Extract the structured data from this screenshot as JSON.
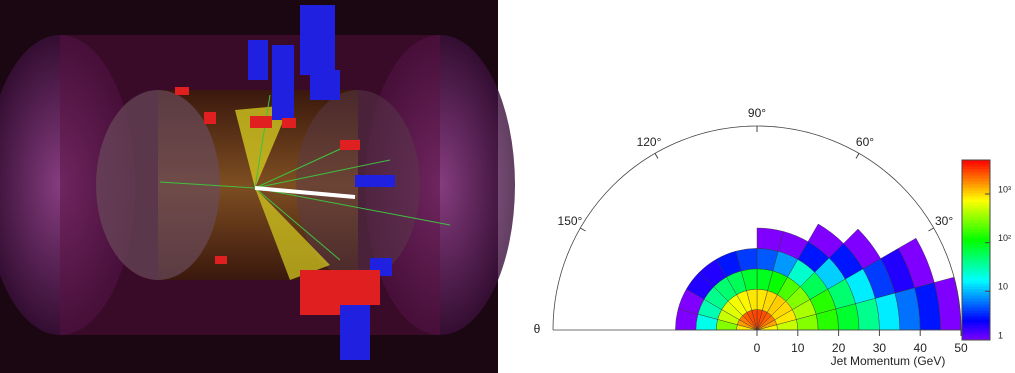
{
  "chart_data": {
    "type": "polar-heatmap",
    "x_label": "Jet Momentum (GeV)",
    "theta_axis_label": "θ",
    "rlim": [
      0,
      50
    ],
    "rticks": [
      0,
      10,
      20,
      30,
      40,
      50
    ],
    "theta_ticks": [
      {
        "value": 30,
        "label": "30°"
      },
      {
        "value": 60,
        "label": "60°"
      },
      {
        "value": 90,
        "label": "90°"
      },
      {
        "value": 120,
        "label": "120°"
      },
      {
        "value": 150,
        "label": "150°"
      }
    ],
    "theta_bins": [
      0,
      15,
      30,
      45,
      60,
      75,
      90,
      105,
      120,
      135,
      150,
      165,
      180
    ],
    "r_bins": [
      0,
      5,
      10,
      15,
      20,
      25,
      30,
      35,
      40,
      45,
      50
    ],
    "counts": [
      [
        800,
        500,
        300,
        150,
        80,
        40,
        15,
        6,
        3,
        1
      ],
      [
        1500,
        900,
        400,
        150,
        50,
        15,
        4,
        2,
        1,
        null
      ],
      [
        2000,
        1000,
        300,
        60,
        12,
        3,
        1,
        null,
        null,
        null
      ],
      [
        2500,
        1100,
        200,
        25,
        3,
        1,
        null,
        null,
        null,
        null
      ],
      [
        2800,
        1000,
        120,
        8,
        1,
        null,
        null,
        null,
        null,
        null
      ],
      [
        3000,
        900,
        90,
        5,
        1,
        null,
        null,
        null,
        null,
        null
      ],
      [
        3000,
        900,
        80,
        4,
        null,
        null,
        null,
        null,
        null,
        null
      ],
      [
        2800,
        800,
        60,
        3,
        null,
        null,
        null,
        null,
        null,
        null
      ],
      [
        2500,
        700,
        50,
        2,
        null,
        null,
        null,
        null,
        null,
        null
      ],
      [
        2000,
        600,
        40,
        2,
        null,
        null,
        null,
        null,
        null,
        null
      ],
      [
        1600,
        500,
        30,
        1,
        null,
        null,
        null,
        null,
        null,
        null
      ],
      [
        900,
        300,
        20,
        1,
        null,
        null,
        null,
        null,
        null,
        null
      ]
    ],
    "zlog": true,
    "zlim": [
      1,
      5000
    ],
    "zticks": [
      1,
      10,
      {
        "value": 100,
        "label": "10²"
      },
      {
        "value": 1000,
        "label": "10³"
      }
    ]
  }
}
